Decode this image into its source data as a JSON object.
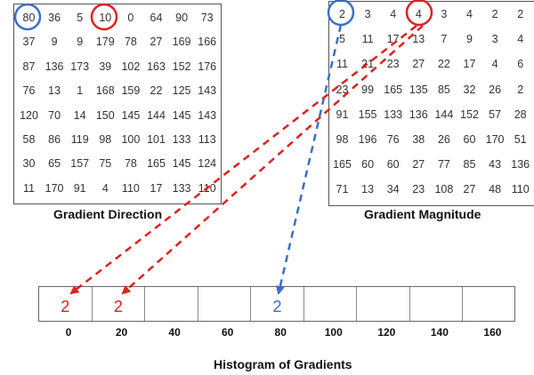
{
  "direction": {
    "caption": "Gradient Direction",
    "rows": [
      [
        "80",
        "36",
        "5",
        "10",
        "0",
        "64",
        "90",
        "73"
      ],
      [
        "37",
        "9",
        "9",
        "179",
        "78",
        "27",
        "169",
        "166"
      ],
      [
        "87",
        "136",
        "173",
        "39",
        "102",
        "163",
        "152",
        "176"
      ],
      [
        "76",
        "13",
        "1",
        "168",
        "159",
        "22",
        "125",
        "143"
      ],
      [
        "120",
        "70",
        "14",
        "150",
        "145",
        "144",
        "145",
        "143"
      ],
      [
        "58",
        "86",
        "119",
        "98",
        "100",
        "101",
        "133",
        "113"
      ],
      [
        "30",
        "65",
        "157",
        "75",
        "78",
        "165",
        "145",
        "124"
      ],
      [
        "11",
        "170",
        "91",
        "4",
        "110",
        "17",
        "133",
        "110"
      ]
    ]
  },
  "magnitude": {
    "caption": "Gradient Magnitude",
    "rows": [
      [
        "2",
        "3",
        "4",
        "4",
        "3",
        "4",
        "2",
        "2"
      ],
      [
        "5",
        "11",
        "17",
        "13",
        "7",
        "9",
        "3",
        "4"
      ],
      [
        "11",
        "21",
        "23",
        "27",
        "22",
        "17",
        "4",
        "6"
      ],
      [
        "23",
        "99",
        "165",
        "135",
        "85",
        "32",
        "26",
        "2"
      ],
      [
        "91",
        "155",
        "133",
        "136",
        "144",
        "152",
        "57",
        "28"
      ],
      [
        "98",
        "196",
        "76",
        "38",
        "26",
        "60",
        "170",
        "51"
      ],
      [
        "165",
        "60",
        "60",
        "27",
        "77",
        "85",
        "43",
        "136"
      ],
      [
        "71",
        "13",
        "34",
        "23",
        "108",
        "27",
        "48",
        "110"
      ]
    ]
  },
  "histogram": {
    "title": "Histogram of Gradients",
    "bins": [
      "0",
      "20",
      "40",
      "60",
      "80",
      "100",
      "120",
      "140",
      "160"
    ],
    "values": [
      "2",
      "2",
      "",
      "",
      "2",
      "",
      "",
      "",
      ""
    ],
    "value_colors": [
      "#e02020",
      "#e02020",
      "",
      "",
      "#3a6fc8",
      "",
      "",
      "",
      ""
    ]
  },
  "colors": {
    "red": "#e02020",
    "blue": "#3a6fc8"
  }
}
